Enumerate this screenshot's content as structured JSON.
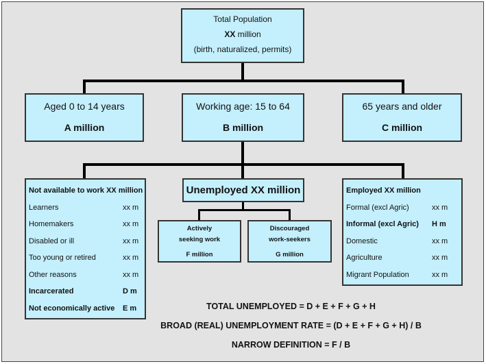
{
  "top": {
    "line1": "Total Population",
    "line2_bold": "XX",
    "line2_rest": " million",
    "line3": "(birth, naturalized, permits)"
  },
  "age_groups": [
    {
      "title": "Aged 0 to 14 years",
      "value": "A million"
    },
    {
      "title": "Working age: 15 to 64",
      "value": "B million"
    },
    {
      "title": "65 years and older",
      "value": "C million"
    }
  ],
  "not_available": {
    "title": "Not available to work XX million",
    "rows": [
      {
        "label": "Learners",
        "value": "xx m",
        "bold": false
      },
      {
        "label": "Homemakers",
        "value": "xx m",
        "bold": false
      },
      {
        "label": "Disabled or ill",
        "value": "xx m",
        "bold": false
      },
      {
        "label": "Too young or retired",
        "value": "xx m",
        "bold": false
      },
      {
        "label": "Other reasons",
        "value": "xx m",
        "bold": false
      },
      {
        "label": "Incarcerated",
        "value": "D m",
        "bold": true
      },
      {
        "label": "Not economically active",
        "value": "E m",
        "bold": true
      }
    ]
  },
  "unemployed": {
    "title": "Unemployed XX million",
    "active": {
      "line1": "Actively",
      "line2": "seeking work",
      "value": "F million"
    },
    "discouraged": {
      "line1": "Discouraged",
      "line2": "work-seekers",
      "value": "G million"
    }
  },
  "employed": {
    "title": "Employed XX million",
    "rows": [
      {
        "label": "Formal (excl Agric)",
        "value": "xx m",
        "bold": false
      },
      {
        "label": "Informal (excl Agric)",
        "value": "H m",
        "bold": true
      },
      {
        "label": "Domestic",
        "value": "xx m",
        "bold": false
      },
      {
        "label": "Agriculture",
        "value": "xx m",
        "bold": false
      },
      {
        "label": "Migrant Population",
        "value": "xx m",
        "bold": false
      }
    ]
  },
  "formulas": [
    "TOTAL UNEMPLOYED = D + E + F + G + H",
    "BROAD (REAL) UNEMPLOYMENT RATE =  (D + E + F + G + H) / B",
    "NARROW DEFINITION = F / B"
  ],
  "colors": {
    "box_fill": "#c4effc",
    "background": "#e3e3e3"
  }
}
